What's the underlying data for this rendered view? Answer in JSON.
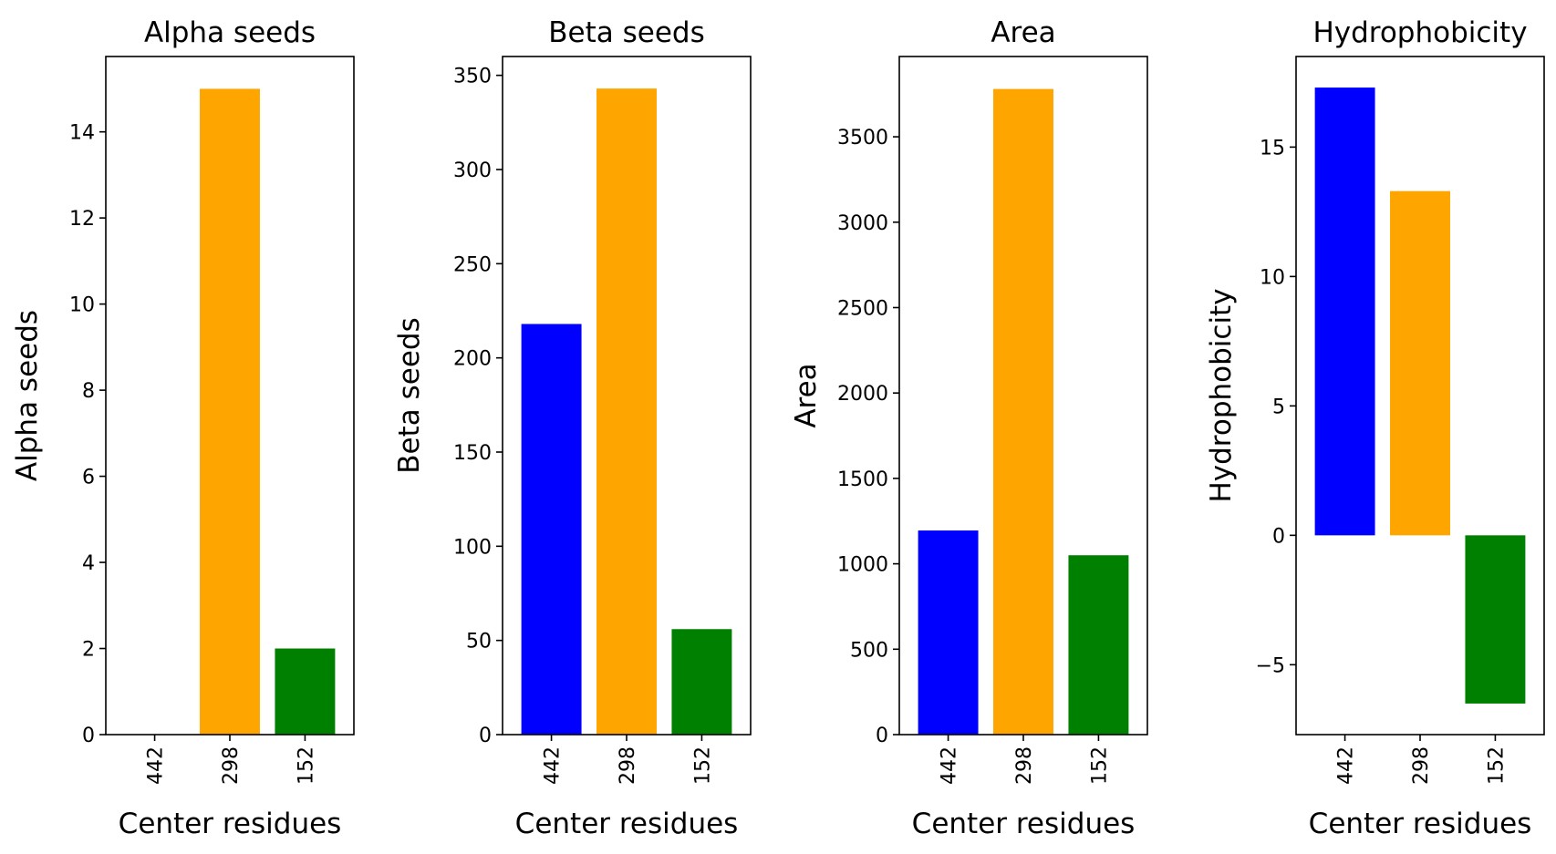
{
  "chart_data": [
    {
      "type": "bar",
      "title": "Alpha seeds",
      "xlabel": "Center residues",
      "ylabel": "Alpha seeds",
      "categories": [
        "442",
        "298",
        "152"
      ],
      "values": [
        0,
        15,
        2
      ],
      "colors": [
        "#0000ff",
        "#ffa500",
        "#008000"
      ],
      "ylim": [
        0,
        15.75
      ],
      "yticks": [
        0,
        2,
        4,
        6,
        8,
        10,
        12,
        14
      ],
      "ytick_labels": [
        "0",
        "2",
        "4",
        "6",
        "8",
        "10",
        "12",
        "14"
      ],
      "grid": false
    },
    {
      "type": "bar",
      "title": "Beta seeds",
      "xlabel": "Center residues",
      "ylabel": "Beta seeds",
      "categories": [
        "442",
        "298",
        "152"
      ],
      "values": [
        218,
        343,
        56
      ],
      "colors": [
        "#0000ff",
        "#ffa500",
        "#008000"
      ],
      "ylim": [
        0,
        360
      ],
      "yticks": [
        0,
        50,
        100,
        150,
        200,
        250,
        300,
        350
      ],
      "ytick_labels": [
        "0",
        "50",
        "100",
        "150",
        "200",
        "250",
        "300",
        "350"
      ],
      "grid": false
    },
    {
      "type": "bar",
      "title": "Area",
      "xlabel": "Center residues",
      "ylabel": "Area",
      "categories": [
        "442",
        "298",
        "152"
      ],
      "values": [
        1195,
        3780,
        1050
      ],
      "colors": [
        "#0000ff",
        "#ffa500",
        "#008000"
      ],
      "ylim": [
        0,
        3970
      ],
      "yticks": [
        0,
        500,
        1000,
        1500,
        2000,
        2500,
        3000,
        3500
      ],
      "ytick_labels": [
        "0",
        "500",
        "1000",
        "1500",
        "2000",
        "2500",
        "3000",
        "3500"
      ],
      "grid": false
    },
    {
      "type": "bar",
      "title": "Hydrophobicity",
      "xlabel": "Center residues",
      "ylabel": "Hydrophobicity",
      "categories": [
        "442",
        "298",
        "152"
      ],
      "values": [
        17.3,
        13.3,
        -6.5
      ],
      "colors": [
        "#0000ff",
        "#ffa500",
        "#008000"
      ],
      "ylim": [
        -7.7,
        18.5
      ],
      "yticks": [
        -5,
        0,
        5,
        10,
        15
      ],
      "ytick_labels": [
        "−5",
        "0",
        "5",
        "10",
        "15"
      ],
      "grid": false
    }
  ]
}
